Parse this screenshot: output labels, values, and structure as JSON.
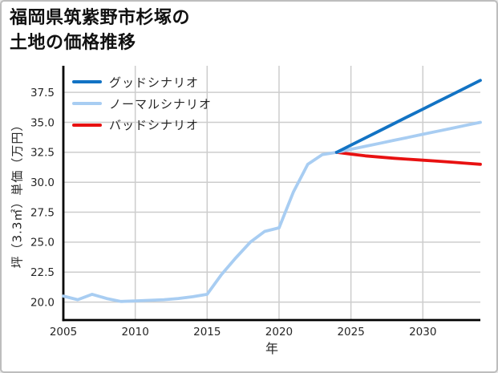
{
  "title": {
    "line1": "福岡県筑紫野市杉塚の",
    "line2": "土地の価格推移"
  },
  "chart_data": {
    "type": "line",
    "title": "福岡県筑紫野市杉塚の土地の価格推移",
    "xlabel": "年",
    "ylabel": "坪（3.3㎡）単価（万円）",
    "x_ticks": [
      2005,
      2010,
      2015,
      2020,
      2025,
      2030
    ],
    "y_ticks": [
      20.0,
      22.5,
      25.0,
      27.5,
      30.0,
      32.5,
      35.0,
      37.5
    ],
    "xlim": [
      2005,
      2034
    ],
    "ylim": [
      18.5,
      39.72
    ],
    "grid": true,
    "legend_position": "upper-left",
    "colors": {
      "good": "#1273c4",
      "normal": "#a8cdf2",
      "bad": "#e81111",
      "history": "#a8cdf2",
      "gridline": "#cdcdcd",
      "spine": "#000000",
      "tick_text": "#262626"
    },
    "history": {
      "years": [
        2005,
        2006,
        2007,
        2008,
        2009,
        2010,
        2011,
        2012,
        2013,
        2014,
        2015,
        2016,
        2017,
        2018,
        2019,
        2020,
        2021,
        2022,
        2023,
        2024
      ],
      "values": [
        20.5,
        20.2,
        20.65,
        20.3,
        20.05,
        20.1,
        20.15,
        20.2,
        20.3,
        20.45,
        20.65,
        22.3,
        23.7,
        25.0,
        25.9,
        26.2,
        29.2,
        31.5,
        32.3,
        32.5
      ]
    },
    "scenarios": [
      {
        "label": "グッドシナリオ",
        "color": "#1273c4",
        "years": [
          2024,
          2025,
          2026,
          2027,
          2028,
          2029,
          2030,
          2031,
          2032,
          2033,
          2034
        ],
        "values": [
          32.5,
          33.1,
          33.7,
          34.3,
          34.9,
          35.5,
          36.1,
          36.7,
          37.3,
          37.9,
          38.5
        ]
      },
      {
        "label": "ノーマルシナリオ",
        "color": "#a8cdf2",
        "years": [
          2024,
          2025,
          2026,
          2027,
          2028,
          2029,
          2030,
          2031,
          2032,
          2033,
          2034
        ],
        "values": [
          32.5,
          32.75,
          33.0,
          33.25,
          33.5,
          33.75,
          34.0,
          34.25,
          34.5,
          34.75,
          35.0
        ]
      },
      {
        "label": "バッドシナリオ",
        "color": "#e81111",
        "years": [
          2024,
          2025,
          2026,
          2027,
          2028,
          2029,
          2030,
          2031,
          2032,
          2033,
          2034
        ],
        "values": [
          32.5,
          32.35,
          32.2,
          32.1,
          32.0,
          31.92,
          31.84,
          31.76,
          31.68,
          31.59,
          31.5
        ]
      }
    ]
  }
}
